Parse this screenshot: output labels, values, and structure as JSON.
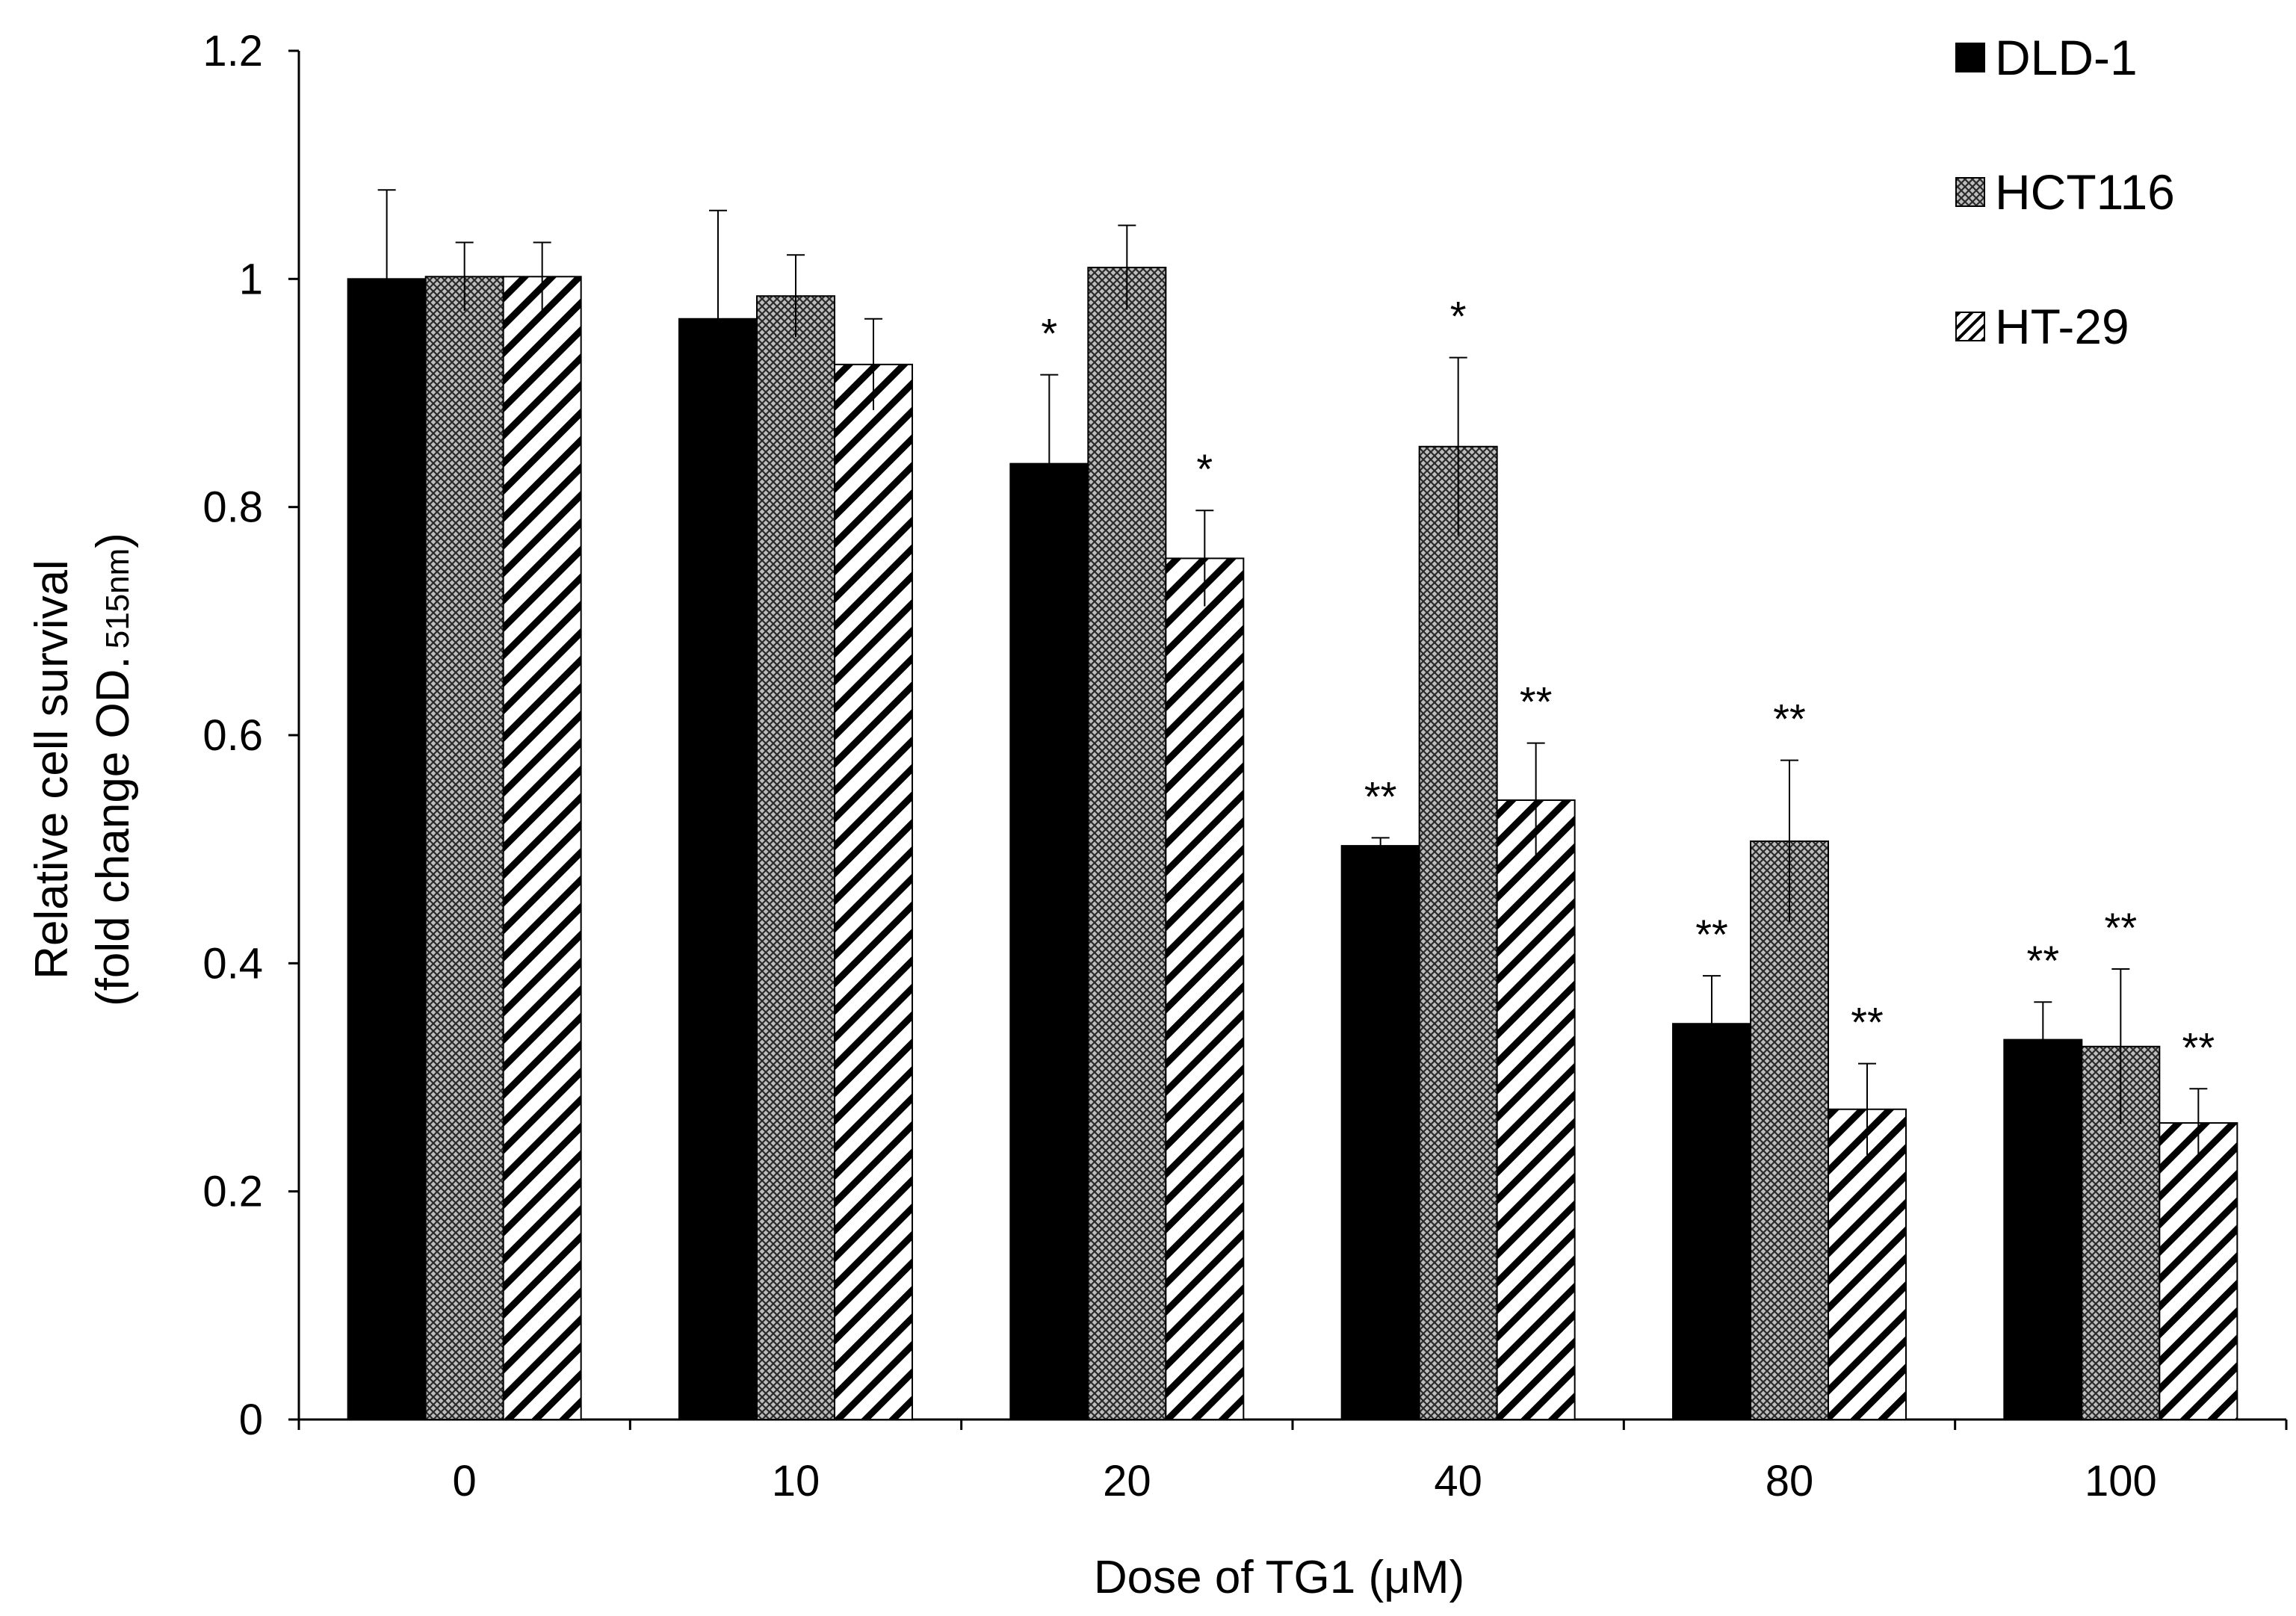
{
  "chart_data": {
    "type": "bar",
    "title": "",
    "xlabel": "Dose of TG1 (μM)",
    "ylabel": {
      "line1": "Relative cell survival",
      "line2_main": "(fold change OD.",
      "line2_sub": "515nm",
      "line2_end": ")"
    },
    "ylim": [
      0,
      1.2
    ],
    "yticks": [
      "0",
      "0.2",
      "0.4",
      "0.6",
      "0.8",
      "1",
      "1.2"
    ],
    "categories": [
      "0",
      "10",
      "20",
      "40",
      "80",
      "100"
    ],
    "legend_position": "top-right",
    "series": [
      {
        "name": "DLD-1",
        "pattern": "solid",
        "color": "#000000",
        "values": [
          1.0,
          0.965,
          0.838,
          0.503,
          0.347,
          0.333
        ],
        "errors": [
          0.078,
          0.095,
          0.078,
          0.007,
          0.042,
          0.033
        ],
        "significance": [
          "",
          "",
          "*",
          "**",
          "**",
          "**"
        ]
      },
      {
        "name": "HCT116",
        "pattern": "crosshatch",
        "color": "#555555",
        "values": [
          1.002,
          0.985,
          1.01,
          0.853,
          0.507,
          0.327
        ],
        "errors": [
          0.03,
          0.036,
          0.037,
          0.078,
          0.071,
          0.068
        ],
        "significance": [
          "",
          "",
          "",
          "*",
          "**",
          "**"
        ]
      },
      {
        "name": "HT-29",
        "pattern": "diagonal",
        "color": "#000000",
        "values": [
          1.002,
          0.925,
          0.755,
          0.543,
          0.272,
          0.26
        ],
        "errors": [
          0.03,
          0.04,
          0.042,
          0.05,
          0.04,
          0.03
        ],
        "significance": [
          "",
          "",
          "*",
          "**",
          "**",
          "**"
        ]
      }
    ]
  }
}
